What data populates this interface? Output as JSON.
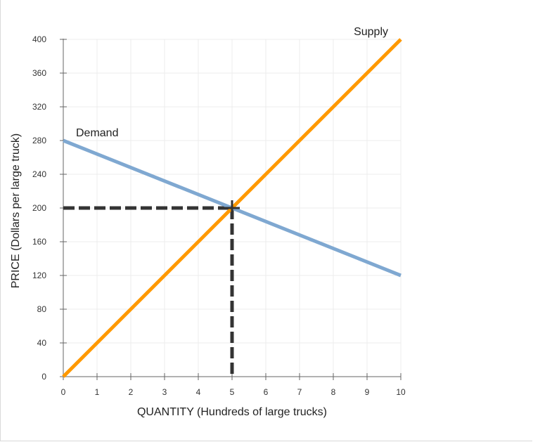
{
  "chart_data": {
    "type": "line",
    "xlabel": "QUANTITY (Hundreds of large trucks)",
    "ylabel": "PRICE (Dollars per large truck)",
    "xlim": [
      0,
      10
    ],
    "ylim": [
      0,
      400
    ],
    "x_ticks": [
      0,
      1,
      2,
      3,
      4,
      5,
      6,
      7,
      8,
      9,
      10
    ],
    "y_ticks": [
      0,
      40,
      80,
      120,
      160,
      200,
      240,
      280,
      320,
      360,
      400
    ],
    "grid": true,
    "series": [
      {
        "name": "Demand",
        "color": "#7fa8d1",
        "points": [
          [
            0,
            280
          ],
          [
            10,
            120
          ]
        ]
      },
      {
        "name": "Supply",
        "color": "#ff9900",
        "points": [
          [
            0,
            0
          ],
          [
            10,
            400
          ]
        ]
      }
    ],
    "equilibrium": {
      "x": 5,
      "y": 200,
      "marker": "cross",
      "color": "#333333"
    }
  }
}
